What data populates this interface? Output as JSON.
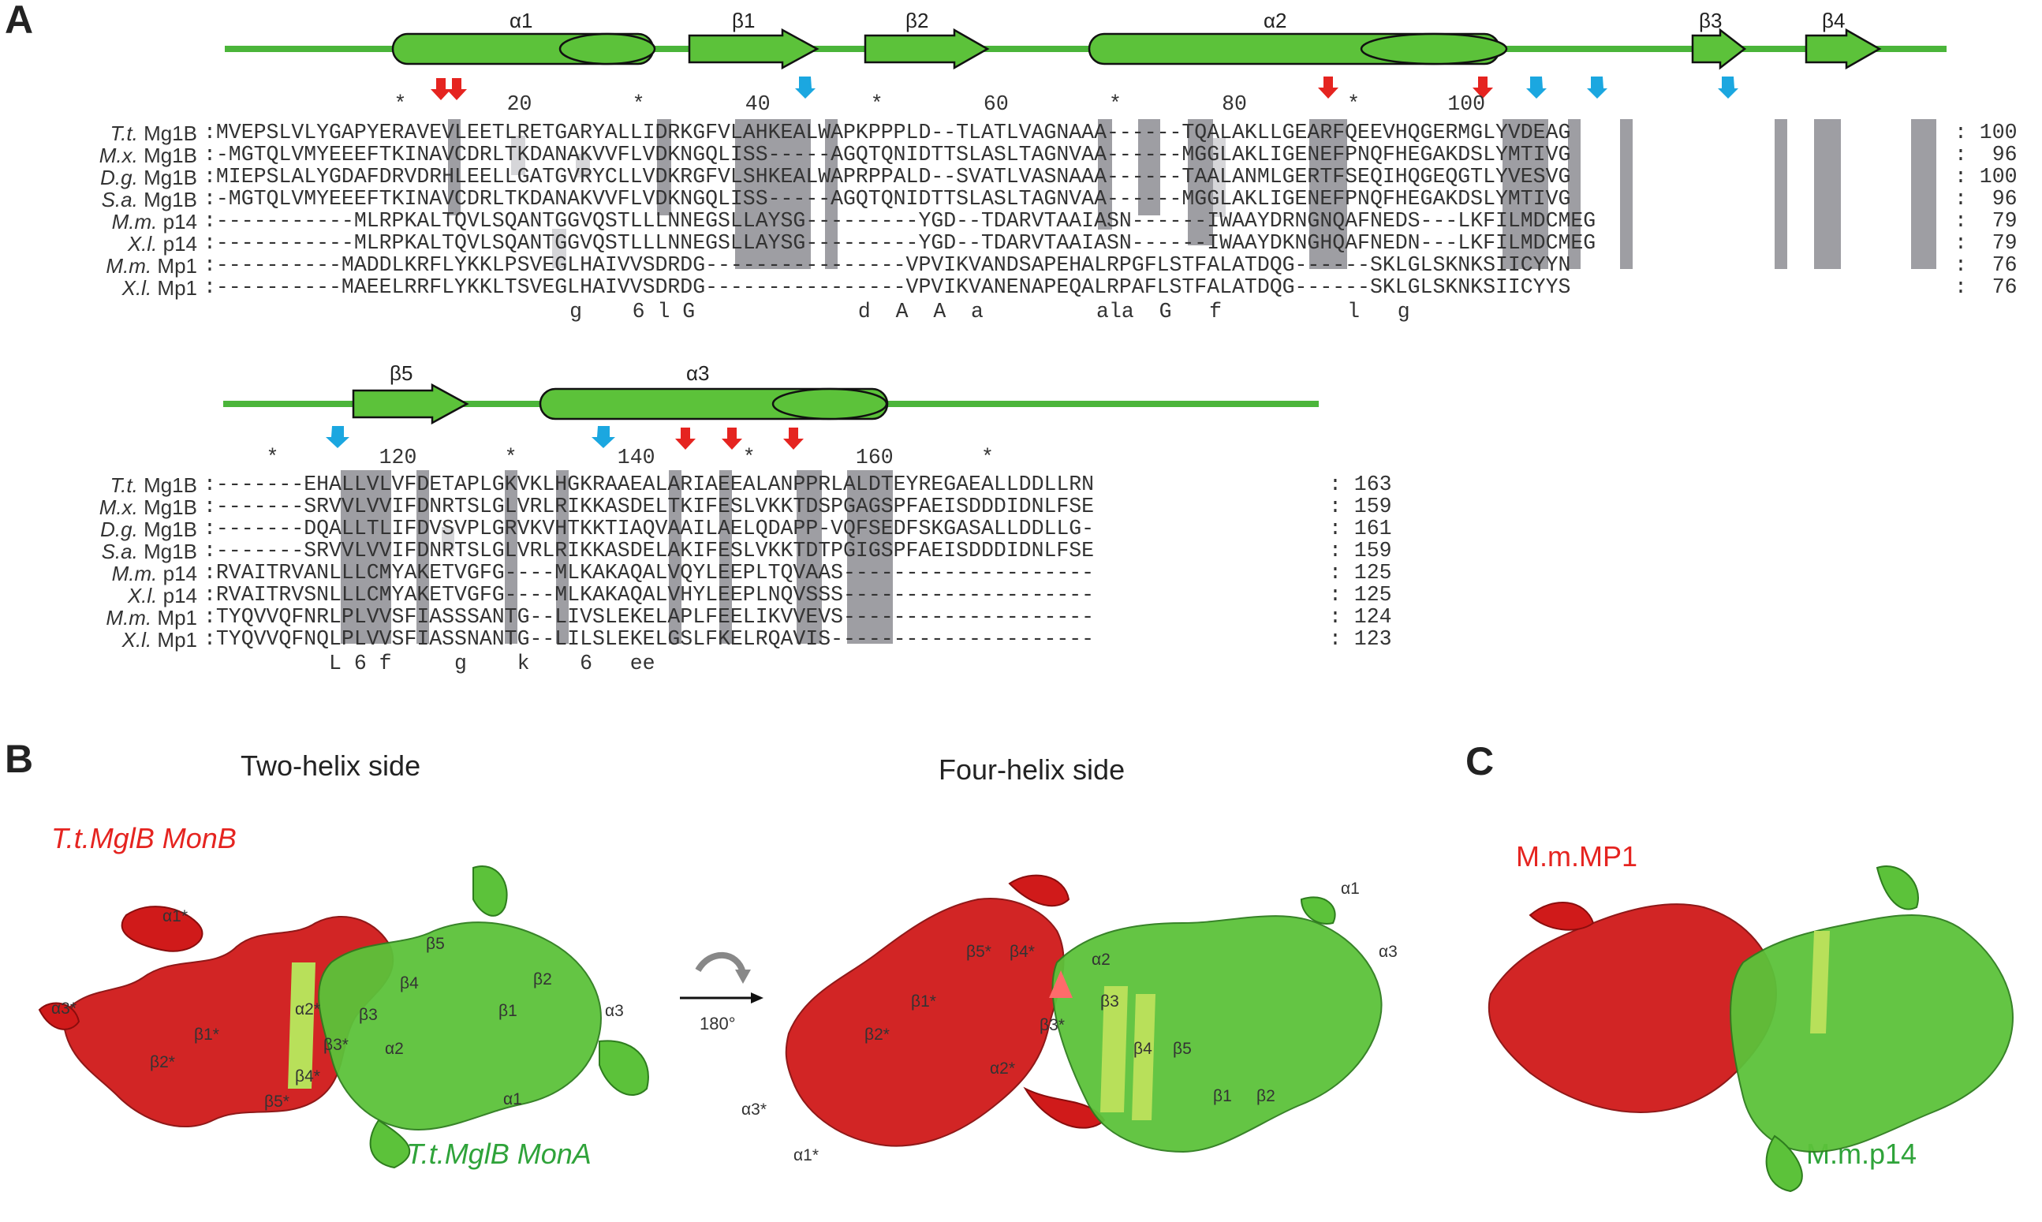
{
  "panels": {
    "a": "A",
    "b": "B",
    "c": "C"
  },
  "block1": {
    "ruler": "     *        20        *        40        *        60        *        80        *       100",
    "species": [
      "T.t. Mg1B",
      "M.x. Mg1B",
      "D.g. Mg1B",
      "S.a. Mg1B",
      "M.m. p14",
      "X.l. p14",
      "M.m. Mp1",
      "X.l. Mp1"
    ],
    "sequences": [
      ":MVEPSLVLYGAPYERAVEVLEETLRETGARYALLIDRKGFVLAHKEALWAPKPPPLD--TLATLVAGNAAA------TQALAKLLGEARFQEEVHQGERMGLYVDEAG",
      ":-MGTQLVMYEEEFTKINAVCDRLTKDANAKVVFLVDKNGQLISS-----AGQTQNIDTTSLASLTAGNVAA------MGGLAKLIGENEFPNQFHEGAKDSLYMTIVG",
      ":MIEPSLALYGDAFDRVDRHLEELLGATGVRYCLLVDKRGFVLSHKEALWAPRPPALD--SVATLVASNAAA------TAALANMLGERTFSEQIHQGEQGTLYVESVG",
      ":-MGTQLVMYEEEFTKINAVCDRLTKDANAKVVFLVDKNGQLISS-----AGQTQNIDTTSLASLTAGNVAA------MGGLAKLIGENEFPNQFHEGAKDSLYMTIVG",
      ":-----------MLRPKALTQVLSQANTGGVQSTLLLNNEGSLLAYSG---------YGD--TDARVTAAIASN------IWAAYDRNGNQAFNEDS---LKFILMDCMEG",
      ":-----------MLRPKALTQVLSQANTGGVQSTLLLNNEGSLLAYSG---------YGD--TDARVTAAIASN------IWAAYDKNGHQAFNEDN---LKFILMDCMEG",
      ":----------MADDLKRFLYKKLPSVEGLHAIVVSDRDG----------------VPVIKVANDSAPEHALRPGFLSTFALATDQG------SKLGLSKNKSIICYYN",
      ":----------MAEELRRFLYKKLTSVEGLHAIVVSDRDG----------------VPVIKVANENAPEQALRPAFLSTFALATDQG------SKLGLSKNKSIICYYS"
    ],
    "end_numbers": [
      ": 100",
      ":  96",
      ": 100",
      ":  96",
      ":  79",
      ":  79",
      ":  76",
      ":  76"
    ],
    "consensus": "                   g    6 l G             d  A  A  a         ala  G   f          l   g"
  },
  "block2": {
    "ruler": "     *        120       *        140       *        160       *",
    "species": [
      "T.t. Mg1B",
      "M.x. Mg1B",
      "D.g. Mg1B",
      "S.a. Mg1B",
      "M.m. p14",
      "X.l. p14",
      "M.m. Mp1",
      "X.l. Mp1"
    ],
    "sequences": [
      ":-------EHALLVLVFDETAPLGKVKLHGKRAAEALARIAEEALANPPRLALDTEYREGAEALLDDLLRN",
      ":-------SRVVLVVIFDNRTSLGLVRLRIKKASDELTKIFESLVKKTDSPGAGSPFAEISDDDIDNLFSE",
      ":-------DQALLTLIFDVSVPLGRVKVHTKKTIAQVAAILAELQDAPP-VQFSEDFSKGASALLDDLLG-",
      ":-------SRVVLVVIFDNRTSLGLVRLRIKKASDELAKIFESLVKKTDTPGIGSPFAEISDDDIDNLFSE",
      ":RVAITRVANLLLCMYAKETVGFG----MLKAKAQALVQYLEEPLTQVAAS--------------------",
      ":RVAITRVSNLLLCMYAKETVGFG----MLKAKAQALVHYLEEPLNQVSSS--------------------",
      ":TYQVVQFNRLPLVVSFIASSSANTG--LIVSLEKELAPLFEELIKVVEVS--------------------",
      ":TYQVVQFNQLPLVVSFIASSNANTG--LILSLEKELGSLFKELRQAVIS---------------------"
    ],
    "end_numbers": [
      ": 163",
      ": 159",
      ": 161",
      ": 159",
      ": 125",
      ": 125",
      ": 124",
      ": 123"
    ],
    "consensus": "          L 6 f     g    k    6   ee"
  },
  "secondary_structure_1": [
    "α1",
    "β1",
    "β2",
    "α2",
    "β3",
    "β4"
  ],
  "secondary_structure_2": [
    "β5",
    "α3"
  ],
  "panel_b": {
    "left_title": "Two-helix side",
    "right_title": "Four-helix side",
    "monB_label": "T.t.MglB MonB",
    "monA_label": "T.t.MglB MonA",
    "rotation": "180°",
    "left_labels": [
      "α1*",
      "α3*",
      "β2*",
      "β1*",
      "α2*",
      "β3*",
      "β4*",
      "β5*",
      "β3",
      "β4",
      "β5",
      "β2",
      "β1",
      "α2",
      "α3",
      "α1"
    ],
    "right_labels": [
      "α1",
      "α3",
      "β5*",
      "β4*",
      "β1*",
      "β2*",
      "α2",
      "β3",
      "β3*",
      "α2*",
      "β4",
      "β5",
      "β1",
      "β2",
      "α3*",
      "α1*"
    ]
  },
  "panel_c": {
    "mp1_label": "M.m.MP1",
    "p14_label": "M.m.p14"
  },
  "colors": {
    "red": "#e52420",
    "green": "#2fa33a",
    "cartoon_red": "#d01a1a",
    "cartoon_green": "#5cc23a",
    "blue_arrow": "#1ba7e0",
    "highlight_dark": "#9e9ea3",
    "highlight_light": "#d6d6d9"
  }
}
